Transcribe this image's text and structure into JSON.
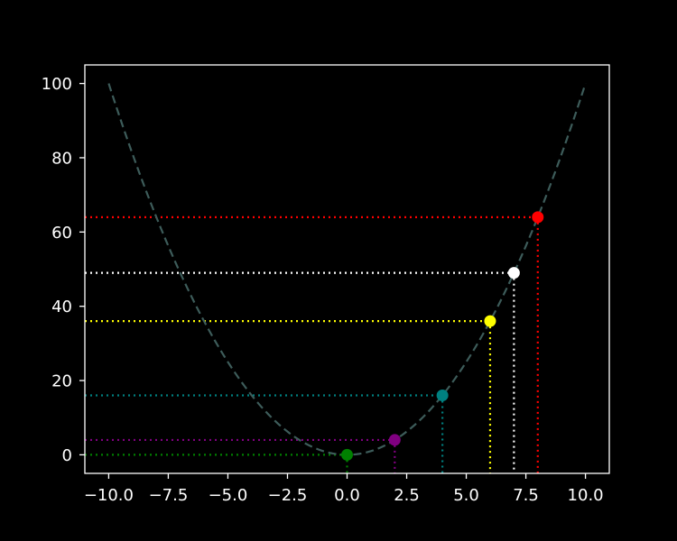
{
  "chart_data": {
    "type": "scatter",
    "title": "",
    "xlabel": "",
    "ylabel": "",
    "xlim": [
      -11,
      11
    ],
    "ylim": [
      -5,
      105
    ],
    "xticks": [
      -10,
      -7.5,
      -5,
      -2.5,
      0,
      2.5,
      5,
      7.5,
      10
    ],
    "xtick_labels": [
      "−10.0",
      "−7.5",
      "−5.0",
      "−2.5",
      "0.0",
      "2.5",
      "5.0",
      "7.5",
      "10.0"
    ],
    "yticks": [
      0,
      20,
      40,
      60,
      80,
      100
    ],
    "ytick_labels": [
      "0",
      "20",
      "40",
      "60",
      "80",
      "100"
    ],
    "grid": false,
    "curve": {
      "equation": "y = x^2",
      "x_range": [
        -10,
        10
      ],
      "color": "#3d5c5a",
      "style": "dashed"
    },
    "points": [
      {
        "x": 0,
        "y": 0,
        "color": "#008000"
      },
      {
        "x": 2,
        "y": 4,
        "color": "#800080"
      },
      {
        "x": 4,
        "y": 16,
        "color": "#008080"
      },
      {
        "x": 6,
        "y": 36,
        "color": "#ffff00"
      },
      {
        "x": 7,
        "y": 49,
        "color": "#ffffff"
      },
      {
        "x": 8,
        "y": 64,
        "color": "#ff0000"
      }
    ],
    "background_color": "#000000",
    "axes_color": "#ffffff"
  }
}
